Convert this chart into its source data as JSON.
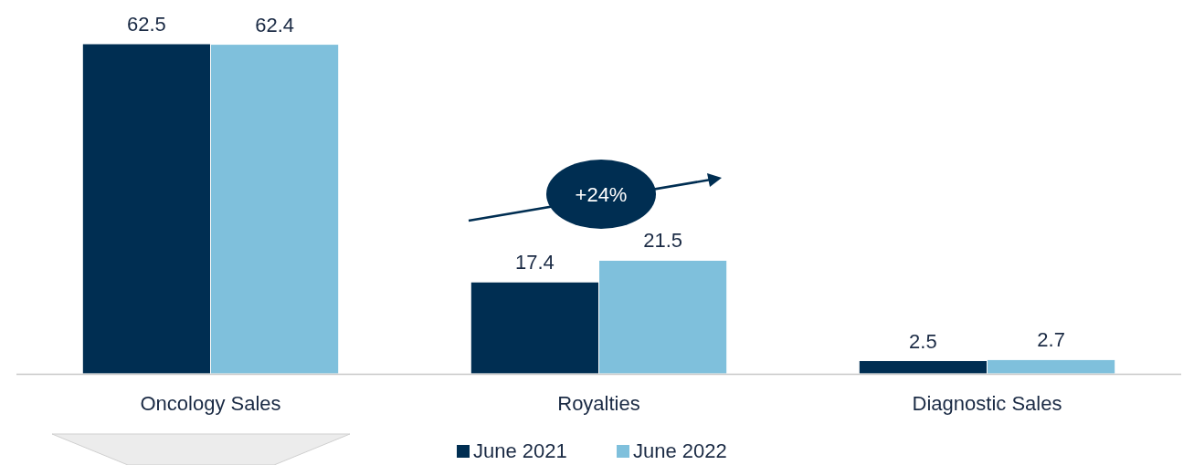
{
  "chart_data": {
    "type": "bar",
    "categories": [
      "Oncology Sales",
      "Royalties",
      "Diagnostic Sales"
    ],
    "series": [
      {
        "name": "June 2021",
        "color": "#002e52",
        "values": [
          62.5,
          17.4,
          2.5
        ]
      },
      {
        "name": "June 2022",
        "color": "#7fc0dc",
        "values": [
          62.4,
          21.5,
          2.7
        ]
      }
    ],
    "data_labels": true,
    "legend": "bottom",
    "annotations": [
      "+24%"
    ]
  }
}
